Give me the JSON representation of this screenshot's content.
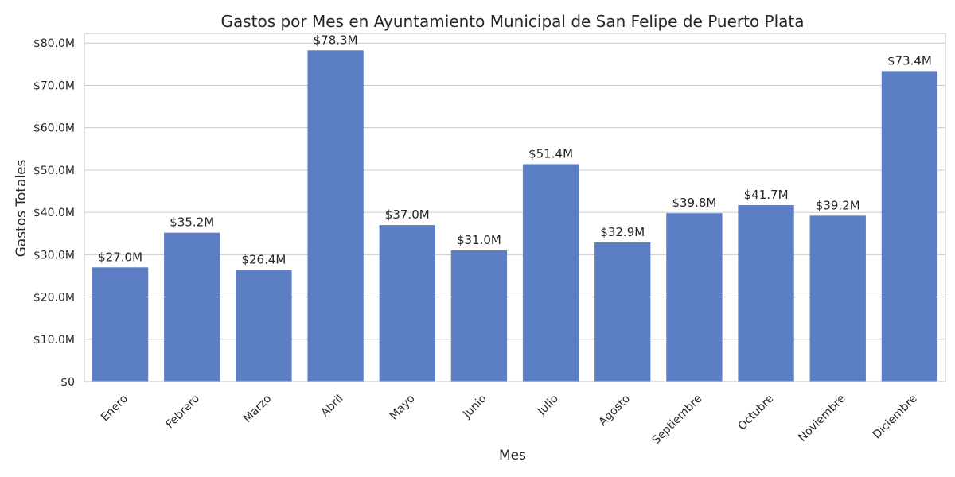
{
  "chart_data": {
    "type": "bar",
    "title": "Gastos por Mes en Ayuntamiento Municipal de San Felipe de Puerto Plata",
    "xlabel": "Mes",
    "ylabel": "Gastos Totales",
    "categories": [
      "Enero",
      "Febrero",
      "Marzo",
      "Abril",
      "Mayo",
      "Junio",
      "Julio",
      "Agosto",
      "Septiembre",
      "Octubre",
      "Noviembre",
      "Diciembre"
    ],
    "values": [
      27.0,
      35.2,
      26.4,
      78.3,
      37.0,
      31.0,
      51.4,
      32.9,
      39.8,
      41.7,
      39.2,
      73.4
    ],
    "value_unit": "millones USD",
    "data_labels": [
      "$27.0M",
      "$35.2M",
      "$26.4M",
      "$78.3M",
      "$37.0M",
      "$31.0M",
      "$51.4M",
      "$32.9M",
      "$39.8M",
      "$41.7M",
      "$39.2M",
      "$73.4M"
    ],
    "ylim": [
      0,
      82.3
    ],
    "yticks": [
      0,
      10,
      20,
      30,
      40,
      50,
      60,
      70,
      80
    ],
    "ytick_labels": [
      "$0",
      "$10.0M",
      "$20.0M",
      "$30.0M",
      "$40.0M",
      "$50.0M",
      "$60.0M",
      "$70.0M",
      "$80.0M"
    ],
    "grid": "horizontal",
    "bar_color": "#5b7ec4"
  }
}
